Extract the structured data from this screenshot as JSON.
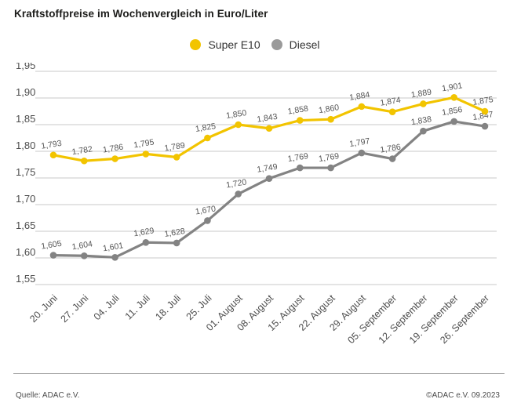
{
  "title": "Kraftstoffpreise im Wochenvergleich in Euro/Liter",
  "legend": {
    "items": [
      {
        "label": "Super E10",
        "color": "#f2c400"
      },
      {
        "label": "Diesel",
        "color": "#9a9a9a"
      }
    ]
  },
  "chart_data": {
    "type": "line",
    "title": "Kraftstoffpreise im Wochenvergleich in Euro/Liter",
    "unit": "Euro/Liter",
    "grid": true,
    "legend_position": "top",
    "categories": [
      "20. Juni",
      "27. Juni",
      "04. Juli",
      "11. Juli",
      "18. Juli",
      "25. Juli",
      "01. August",
      "08. August",
      "15. August",
      "22. August",
      "29. August",
      "05. September",
      "12. September",
      "19. September",
      "26. September"
    ],
    "series": [
      {
        "name": "Super E10",
        "color": "#f2c400",
        "values": [
          1.793,
          1.782,
          1.786,
          1.795,
          1.789,
          1.825,
          1.85,
          1.843,
          1.858,
          1.86,
          1.884,
          1.874,
          1.889,
          1.901,
          1.875
        ],
        "labels": [
          "1,793",
          "1,782",
          "1,786",
          "1,795",
          "1,789",
          "1,825",
          "1,850",
          "1,843",
          "1,858",
          "1,860",
          "1,884",
          "1,874",
          "1,889",
          "1,901",
          "1,875"
        ]
      },
      {
        "name": "Diesel",
        "color": "#838383",
        "values": [
          1.605,
          1.604,
          1.601,
          1.629,
          1.628,
          1.67,
          1.72,
          1.749,
          1.769,
          1.769,
          1.797,
          1.786,
          1.838,
          1.856,
          1.847
        ],
        "labels": [
          "1,605",
          "1,604",
          "1,601",
          "1,629",
          "1,628",
          "1,670",
          "1,720",
          "1,749",
          "1,769",
          "1,769",
          "1,797",
          "1,786",
          "1,838",
          "1,856",
          "1,847"
        ]
      }
    ],
    "y_axis": {
      "min": 1.55,
      "max": 1.95,
      "step": 0.05,
      "tick_labels": [
        "1,95",
        "1,90",
        "1,85",
        "1,80",
        "1,75",
        "1,70",
        "1,65",
        "1,60",
        "1,55"
      ]
    }
  },
  "footer": {
    "source": "Quelle: ADAC e.V.",
    "copyright": "©ADAC e.V. 09.2023"
  },
  "colors": {
    "grid": "#c9c9c9",
    "axis_text": "#4d4d4d",
    "value_label_text": "#565656"
  }
}
